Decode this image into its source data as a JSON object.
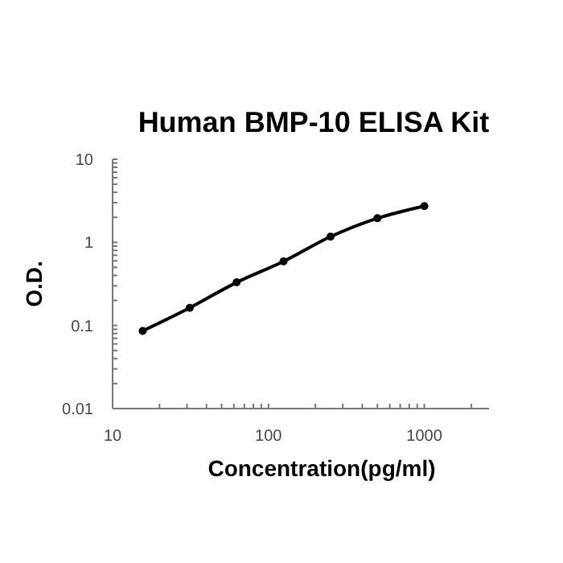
{
  "chart_data": {
    "type": "line",
    "title": "Human BMP-10 ELISA Kit",
    "xlabel": "Concentration(pg/ml)",
    "ylabel": "O.D.",
    "log": "xy",
    "grid": false,
    "marker": "circle",
    "line_style": "solid",
    "x": [
      15.6,
      31.25,
      62.5,
      125,
      250,
      500,
      1000
    ],
    "series": [
      {
        "color": "#000000",
        "values": [
          0.086,
          0.163,
          0.33,
          0.59,
          1.17,
          1.95,
          2.73
        ]
      }
    ],
    "xlim": [
      10,
      2600
    ],
    "xticks": [
      10,
      {
        "value": 20,
        "label": null
      },
      {
        "value": 30,
        "label": null
      },
      {
        "value": 40,
        "label": null
      },
      {
        "value": 50,
        "label": null
      },
      {
        "value": 60,
        "label": null
      },
      {
        "value": 70,
        "label": null
      },
      {
        "value": 80,
        "label": null
      },
      {
        "value": 90,
        "label": null
      },
      100,
      {
        "value": 200,
        "label": null
      },
      {
        "value": 300,
        "label": null
      },
      {
        "value": 400,
        "label": null
      },
      {
        "value": 500,
        "label": null
      },
      {
        "value": 600,
        "label": null
      },
      {
        "value": 700,
        "label": null
      },
      {
        "value": 800,
        "label": null
      },
      {
        "value": 900,
        "label": null
      },
      1000,
      {
        "value": 2000,
        "label": null
      }
    ],
    "ylim": [
      0.01,
      10
    ],
    "yticks": [
      0.01,
      {
        "value": 0.02,
        "label": null
      },
      {
        "value": 0.03,
        "label": null
      },
      {
        "value": 0.04,
        "label": null
      },
      {
        "value": 0.05,
        "label": null
      },
      {
        "value": 0.06,
        "label": null
      },
      {
        "value": 0.07,
        "label": null
      },
      {
        "value": 0.08,
        "label": null
      },
      {
        "value": 0.09,
        "label": null
      },
      0.1,
      {
        "value": 0.2,
        "label": null
      },
      {
        "value": 0.3,
        "label": null
      },
      {
        "value": 0.4,
        "label": null
      },
      {
        "value": 0.5,
        "label": null
      },
      {
        "value": 0.6,
        "label": null
      },
      {
        "value": 0.7,
        "label": null
      },
      {
        "value": 0.8,
        "label": null
      },
      {
        "value": 0.9,
        "label": null
      },
      1,
      {
        "value": 2,
        "label": null
      },
      {
        "value": 3,
        "label": null
      },
      {
        "value": 4,
        "label": null
      },
      {
        "value": 5,
        "label": null
      },
      {
        "value": 6,
        "label": null
      },
      {
        "value": 7,
        "label": null
      },
      {
        "value": 8,
        "label": null
      },
      {
        "value": 9,
        "label": null
      },
      10
    ]
  }
}
